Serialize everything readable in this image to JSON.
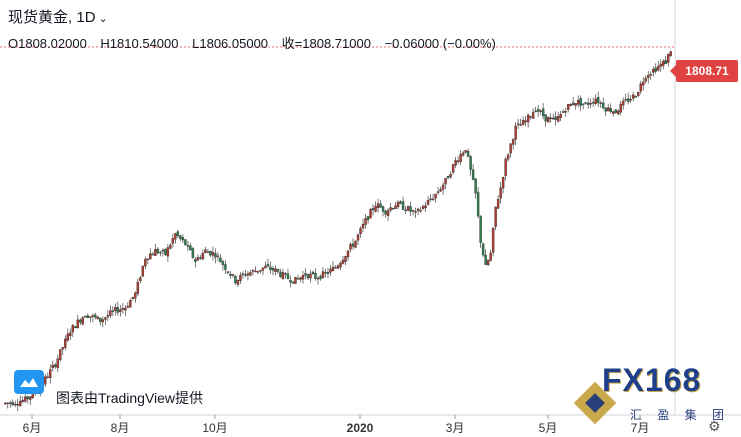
{
  "header": {
    "symbol": "现货黄金",
    "interval": "1D",
    "open": "O1808.02000",
    "high": "H1810.54000",
    "low": "L1806.05000",
    "close": "收=1808.71000",
    "change": "−0.06000 (−0.00%)"
  },
  "price_tag": "1808.71",
  "credit": "图表由TradingView提供",
  "brand": {
    "main": "FX168",
    "sub": "汇 盈 集 团"
  },
  "colors": {
    "up": "#b23b2f",
    "down": "#2e7d4f",
    "axis": "#333333",
    "price_line": "#e04141"
  },
  "chart_data": {
    "type": "candlestick",
    "title": "",
    "xlabel": "",
    "ylabel": "",
    "x_ticks": [
      "6月",
      "8月",
      "10月",
      "2020",
      "3月",
      "5月",
      "7月"
    ],
    "y_range": [
      1265,
      1815
    ],
    "path": [
      [
        0,
        1275
      ],
      [
        8,
        1280
      ],
      [
        14,
        1300
      ],
      [
        20,
        1335
      ],
      [
        26,
        1385
      ],
      [
        32,
        1410
      ],
      [
        38,
        1400
      ],
      [
        44,
        1415
      ],
      [
        48,
        1420
      ],
      [
        52,
        1440
      ],
      [
        56,
        1495
      ],
      [
        60,
        1505
      ],
      [
        64,
        1500
      ],
      [
        68,
        1530
      ],
      [
        72,
        1515
      ],
      [
        76,
        1490
      ],
      [
        80,
        1505
      ],
      [
        84,
        1500
      ],
      [
        88,
        1480
      ],
      [
        92,
        1460
      ],
      [
        96,
        1470
      ],
      [
        100,
        1475
      ],
      [
        104,
        1480
      ],
      [
        108,
        1475
      ],
      [
        112,
        1465
      ],
      [
        116,
        1460
      ],
      [
        120,
        1470
      ],
      [
        124,
        1465
      ],
      [
        128,
        1470
      ],
      [
        132,
        1480
      ],
      [
        136,
        1500
      ],
      [
        140,
        1520
      ],
      [
        144,
        1550
      ],
      [
        148,
        1575
      ],
      [
        152,
        1565
      ],
      [
        156,
        1575
      ],
      [
        160,
        1570
      ],
      [
        164,
        1560
      ],
      [
        168,
        1575
      ],
      [
        172,
        1590
      ],
      [
        176,
        1610
      ],
      [
        180,
        1640
      ],
      [
        184,
        1660
      ],
      [
        188,
        1590
      ],
      [
        190,
        1520
      ],
      [
        192,
        1480
      ],
      [
        194,
        1500
      ],
      [
        196,
        1570
      ],
      [
        198,
        1600
      ],
      [
        200,
        1640
      ],
      [
        204,
        1690
      ],
      [
        208,
        1700
      ],
      [
        212,
        1720
      ],
      [
        216,
        1705
      ],
      [
        220,
        1700
      ],
      [
        224,
        1720
      ],
      [
        228,
        1730
      ],
      [
        232,
        1725
      ],
      [
        236,
        1735
      ],
      [
        240,
        1720
      ],
      [
        244,
        1715
      ],
      [
        248,
        1730
      ],
      [
        252,
        1740
      ],
      [
        256,
        1770
      ],
      [
        260,
        1780
      ],
      [
        264,
        1790
      ],
      [
        266,
        1808
      ]
    ],
    "last_price": 1808.71
  }
}
